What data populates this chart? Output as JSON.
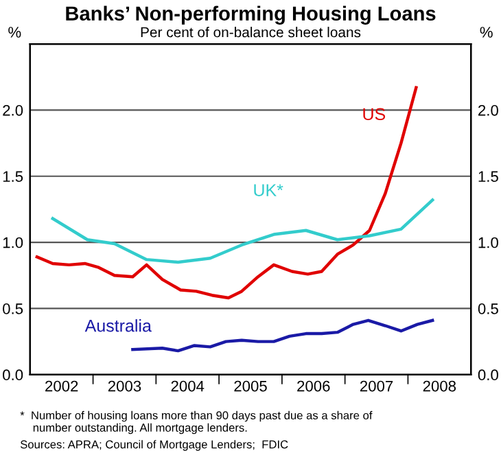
{
  "chart_data": {
    "type": "line",
    "title": "Banks’ Non-performing Housing Loans",
    "subtitle": "Per cent of on-balance sheet loans",
    "ylabel": "%",
    "y2label": "%",
    "xlim": [
      2002,
      2009
    ],
    "xticks": [
      {
        "value": 2002.5,
        "label": "2002"
      },
      {
        "value": 2003.5,
        "label": "2003"
      },
      {
        "value": 2004.5,
        "label": "2004"
      },
      {
        "value": 2005.5,
        "label": "2005"
      },
      {
        "value": 2006.5,
        "label": "2006"
      },
      {
        "value": 2007.5,
        "label": "2007"
      },
      {
        "value": 2008.5,
        "label": "2008"
      },
      {
        "value": 2003,
        "label": null
      },
      {
        "value": 2004,
        "label": null
      },
      {
        "value": 2005,
        "label": null
      },
      {
        "value": 2006,
        "label": null
      },
      {
        "value": 2007,
        "label": null
      },
      {
        "value": 2008,
        "label": null
      }
    ],
    "ylim": [
      0,
      2.5
    ],
    "yticks": [
      {
        "value": 0,
        "label": "0.0"
      },
      {
        "value": 0.5,
        "label": "0.5"
      },
      {
        "value": 1,
        "label": "1.0"
      },
      {
        "value": 1.5,
        "label": "1.5"
      },
      {
        "value": 2,
        "label": "2.0"
      }
    ],
    "y2lim": [
      0,
      2.5
    ],
    "y2ticks": [
      {
        "value": 0,
        "label": "0.0"
      },
      {
        "value": 0.5,
        "label": "0.5"
      },
      {
        "value": 1,
        "label": "1.0"
      },
      {
        "value": 1.5,
        "label": "1.5"
      },
      {
        "value": 2,
        "label": "2.0"
      }
    ],
    "grid": "y",
    "legend": false,
    "marker": "none",
    "line_style": "solid",
    "series": [
      {
        "name": "US",
        "color": "#e00000",
        "x": [
          2002.11,
          2002.36,
          2002.62,
          2002.87,
          2003.09,
          2003.34,
          2003.63,
          2003.85,
          2004.1,
          2004.39,
          2004.64,
          2004.89,
          2005.15,
          2005.36,
          2005.62,
          2005.87,
          2006.16,
          2006.41,
          2006.63,
          2006.88,
          2007.13,
          2007.39,
          2007.64,
          2007.89,
          2008.13
        ],
        "values": [
          0.89,
          0.84,
          0.83,
          0.84,
          0.81,
          0.75,
          0.74,
          0.83,
          0.72,
          0.64,
          0.63,
          0.6,
          0.58,
          0.63,
          0.74,
          0.83,
          0.78,
          0.76,
          0.78,
          0.91,
          0.98,
          1.09,
          1.37,
          1.75,
          2.17
        ]
      },
      {
        "name": "UK*",
        "color": "#33cccc",
        "x": [
          2002.36,
          2002.91,
          2003.34,
          2003.85,
          2004.35,
          2004.86,
          2005.36,
          2005.87,
          2006.38,
          2006.88,
          2007.39,
          2007.89,
          2008.39
        ],
        "values": [
          1.18,
          1.02,
          0.99,
          0.87,
          0.85,
          0.88,
          0.98,
          1.06,
          1.09,
          1.02,
          1.05,
          1.1,
          1.32
        ]
      },
      {
        "name": "Australia",
        "color": "#1a1aa6",
        "x": [
          2003.63,
          2004.1,
          2004.35,
          2004.61,
          2004.86,
          2005.11,
          2005.36,
          2005.62,
          2005.87,
          2006.12,
          2006.38,
          2006.63,
          2006.88,
          2007.13,
          2007.37,
          2007.64,
          2007.89,
          2008.15,
          2008.39
        ],
        "values": [
          0.19,
          0.2,
          0.18,
          0.22,
          0.21,
          0.25,
          0.26,
          0.25,
          0.25,
          0.29,
          0.31,
          0.31,
          0.32,
          0.38,
          0.41,
          0.37,
          0.33,
          0.38,
          0.41
        ]
      }
    ],
    "annotations": [
      "*  Number of housing loans more than 90 days past due as a share of\n    number outstanding. All mortgage lenders.",
      "Sources: APRA; Council of Mortgage Lenders;  FDIC"
    ]
  }
}
